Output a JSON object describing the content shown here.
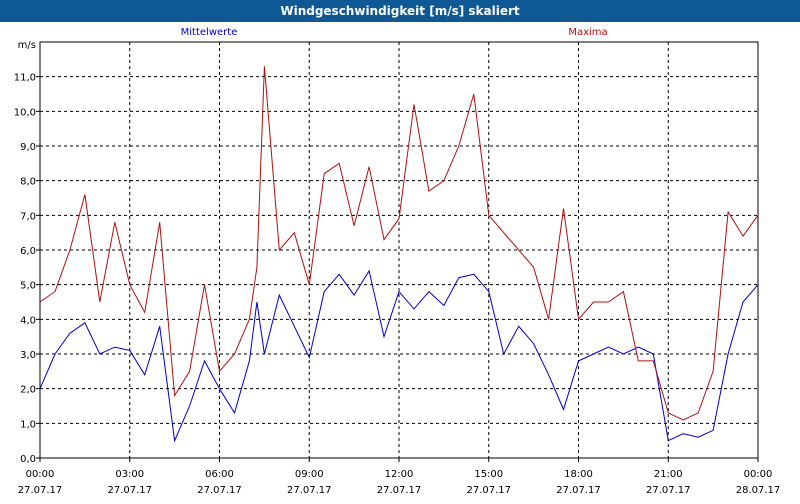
{
  "window": {
    "title": "Windgeschwindigkeit [m/s] skaliert"
  },
  "chart_data": {
    "type": "line",
    "title": "Windgeschwindigkeit [m/s] skaliert",
    "ylabel": "m/s",
    "ylim": [
      0,
      12
    ],
    "xlim_hours": [
      0,
      24
    ],
    "grid": true,
    "legend": "top",
    "y_ticks": [
      "0,0",
      "1,0",
      "2,0",
      "3,0",
      "4,0",
      "5,0",
      "6,0",
      "7,0",
      "8,0",
      "9,0",
      "10,0",
      "11,0"
    ],
    "x_ticks": [
      {
        "time": "00:00",
        "date": "27.07.17"
      },
      {
        "time": "03:00",
        "date": "27.07.17"
      },
      {
        "time": "06:00",
        "date": "27.07.17"
      },
      {
        "time": "09:00",
        "date": "27.07.17"
      },
      {
        "time": "12:00",
        "date": "27.07.17"
      },
      {
        "time": "15:00",
        "date": "27.07.17"
      },
      {
        "time": "18:00",
        "date": "27.07.17"
      },
      {
        "time": "21:00",
        "date": "27.07.17"
      },
      {
        "time": "00:00",
        "date": "28.07.17"
      }
    ],
    "x": [
      0,
      0.5,
      1,
      1.5,
      2,
      2.5,
      3,
      3.5,
      4,
      4.5,
      5,
      5.5,
      6,
      6.5,
      7,
      7.25,
      7.5,
      8,
      8.5,
      9,
      9.5,
      10,
      10.5,
      11,
      11.5,
      12,
      12.5,
      13,
      13.5,
      14,
      14.5,
      15,
      15.5,
      16,
      16.5,
      17,
      17.5,
      18,
      18.5,
      19,
      19.5,
      20,
      20.5,
      21,
      21.5,
      22,
      22.5,
      23,
      23.5,
      24
    ],
    "series": [
      {
        "name": "Mittelwerte",
        "color": "#0000cc",
        "values": [
          2.0,
          3.0,
          3.6,
          3.9,
          3.0,
          3.2,
          3.1,
          2.4,
          3.8,
          0.5,
          1.5,
          2.8,
          2.0,
          1.3,
          2.8,
          4.5,
          3.0,
          4.7,
          3.8,
          2.9,
          4.8,
          5.3,
          4.7,
          5.4,
          3.5,
          4.8,
          4.3,
          4.8,
          4.4,
          5.2,
          5.3,
          4.8,
          3.0,
          3.8,
          3.3,
          2.4,
          1.4,
          2.8,
          3.0,
          3.2,
          3.0,
          3.2,
          3.0,
          0.5,
          0.7,
          0.6,
          0.8,
          3.0,
          4.5,
          5.0
        ]
      },
      {
        "name": "Maxima",
        "color": "#b01010",
        "values": [
          4.5,
          4.8,
          6.0,
          7.6,
          4.5,
          6.8,
          5.0,
          4.2,
          6.8,
          1.8,
          2.5,
          5.0,
          2.5,
          3.0,
          4.0,
          5.5,
          11.3,
          6.0,
          6.5,
          5.0,
          8.2,
          8.5,
          6.7,
          8.4,
          6.3,
          6.9,
          10.2,
          7.7,
          8.0,
          9.0,
          10.5,
          7.0,
          6.5,
          6.0,
          5.5,
          4.0,
          7.2,
          4.0,
          4.5,
          4.5,
          4.8,
          2.8,
          2.8,
          1.3,
          1.1,
          1.3,
          2.5,
          7.1,
          6.4,
          7.0
        ]
      }
    ]
  }
}
